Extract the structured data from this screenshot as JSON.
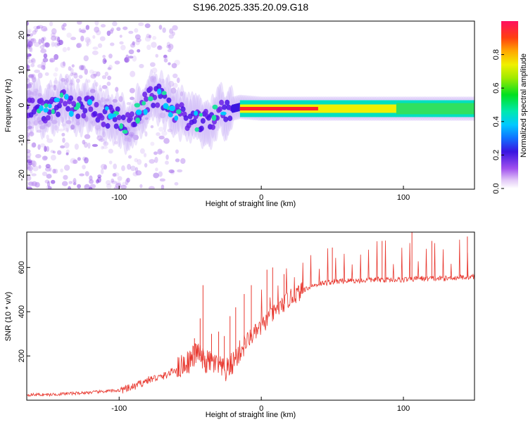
{
  "title": "S196.2025.335.20.09.G18",
  "chart_data": [
    {
      "type": "heatmap",
      "xlabel": "Height of straight line (km)",
      "ylabel": "Frequency (Hz)",
      "xlim": [
        -165,
        150
      ],
      "ylim": [
        -24,
        24
      ],
      "xticks": [
        -100,
        0,
        100
      ],
      "yticks": [
        -20,
        -10,
        0,
        10,
        20
      ],
      "ridge": [
        {
          "x": -160,
          "f": 0
        },
        {
          "x": -150,
          "f": -2
        },
        {
          "x": -140,
          "f": 1
        },
        {
          "x": -130,
          "f": -1
        },
        {
          "x": -120,
          "f": 0
        },
        {
          "x": -110,
          "f": -3
        },
        {
          "x": -100,
          "f": -4
        },
        {
          "x": -95,
          "f": -6
        },
        {
          "x": -90,
          "f": -4
        },
        {
          "x": -85,
          "f": -1
        },
        {
          "x": -80,
          "f": 1
        },
        {
          "x": -75,
          "f": 3
        },
        {
          "x": -70,
          "f": 2
        },
        {
          "x": -65,
          "f": 0
        },
        {
          "x": -60,
          "f": -2
        },
        {
          "x": -55,
          "f": -3
        },
        {
          "x": -50,
          "f": -4
        },
        {
          "x": -45,
          "f": -5
        },
        {
          "x": -40,
          "f": -5
        },
        {
          "x": -35,
          "f": -4
        },
        {
          "x": -30,
          "f": -2
        },
        {
          "x": -25,
          "f": -2
        },
        {
          "x": -20,
          "f": -1
        },
        {
          "x": -15,
          "f": -0.5
        },
        {
          "x": 0,
          "f": -1
        },
        {
          "x": 50,
          "f": -1
        },
        {
          "x": 100,
          "f": -1
        },
        {
          "x": 150,
          "f": -1
        }
      ],
      "colorbar": {
        "label": "Normalized spectral amplitude",
        "range": [
          0,
          1
        ],
        "ticks": [
          "0.0",
          "0.2",
          "0.4",
          "0.6",
          "0.8"
        ]
      }
    },
    {
      "type": "line",
      "xlabel": "Height of straight line (km)",
      "ylabel": "SNR (10 * v/v)",
      "xlim": [
        -165,
        150
      ],
      "ylim": [
        0,
        760
      ],
      "xticks": [
        -100,
        0,
        100
      ],
      "yticks": [
        200,
        400,
        600
      ],
      "series": [
        {
          "name": "SNR",
          "color": "#e8382f",
          "x": [
            -165,
            -150,
            -135,
            -120,
            -110,
            -100,
            -95,
            -90,
            -85,
            -80,
            -75,
            -70,
            -65,
            -60,
            -55,
            -50,
            -45,
            -40,
            -35,
            -30,
            -25,
            -20,
            -15,
            -10,
            -5,
            0,
            5,
            10,
            15,
            20,
            25,
            30,
            35,
            40,
            45,
            50,
            60,
            70,
            80,
            90,
            100,
            110,
            120,
            130,
            140,
            150
          ],
          "y": [
            25,
            25,
            30,
            35,
            40,
            45,
            50,
            60,
            75,
            90,
            100,
            105,
            120,
            140,
            160,
            180,
            220,
            170,
            175,
            150,
            130,
            170,
            220,
            270,
            300,
            330,
            370,
            400,
            430,
            460,
            480,
            500,
            515,
            525,
            530,
            535,
            540,
            540,
            545,
            545,
            545,
            550,
            550,
            550,
            555,
            560
          ]
        }
      ],
      "spikes": [
        {
          "x": -41,
          "y": 520
        },
        {
          "x": -43,
          "y": 370
        },
        {
          "x": -47,
          "y": 280
        },
        {
          "x": -35,
          "y": 300
        },
        {
          "x": -30,
          "y": 310
        },
        {
          "x": -26,
          "y": 290
        },
        {
          "x": -22,
          "y": 380
        },
        {
          "x": -18,
          "y": 420
        },
        {
          "x": -12,
          "y": 480
        },
        {
          "x": -7,
          "y": 520
        },
        {
          "x": 4,
          "y": 590
        },
        {
          "x": 8,
          "y": 600
        },
        {
          "x": 16,
          "y": 570
        },
        {
          "x": 50,
          "y": 690
        },
        {
          "x": 85,
          "y": 720
        },
        {
          "x": 106,
          "y": 760
        },
        {
          "x": 120,
          "y": 720
        },
        {
          "x": 145,
          "y": 740
        }
      ]
    }
  ]
}
